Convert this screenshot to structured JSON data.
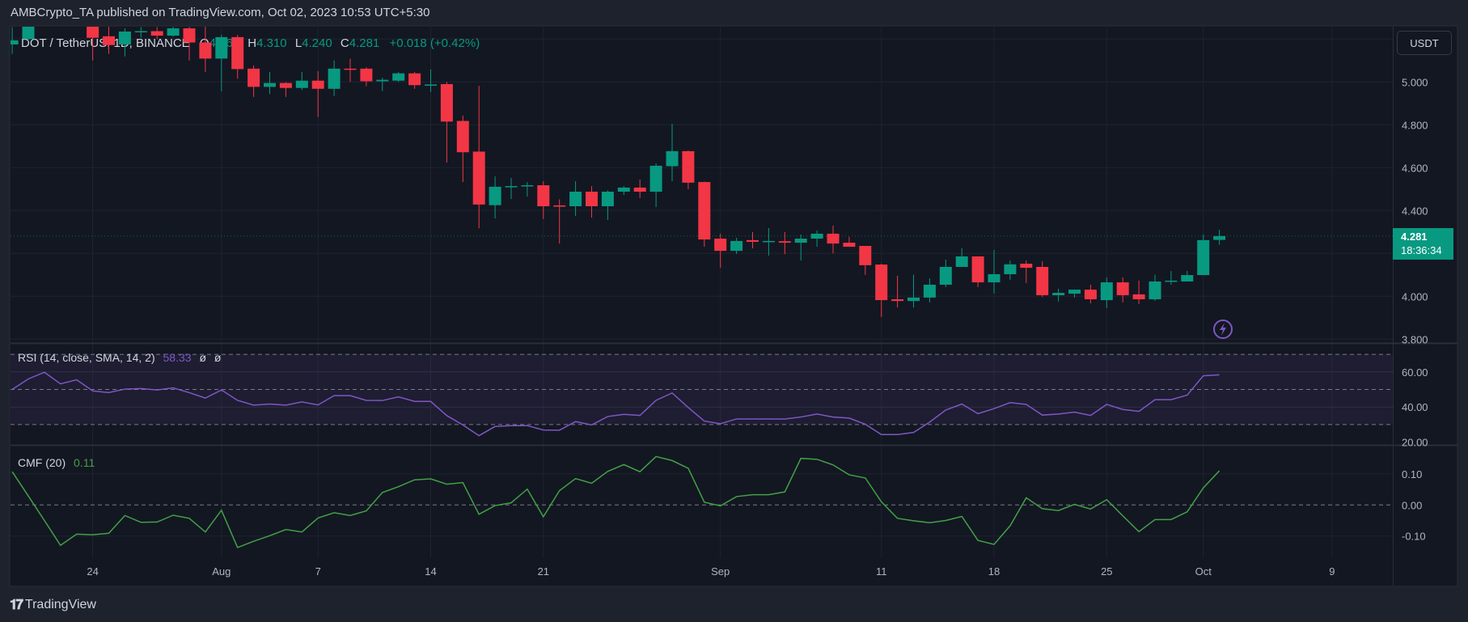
{
  "header": {
    "publish_line": "AMBCrypto_TA published on TradingView.com, Oct 02, 2023 10:53 UTC+5:30"
  },
  "legend": {
    "symbol": "DOT / TetherUS, 1D, BINANCE",
    "open_label": "O",
    "open": "4.263",
    "high_label": "H",
    "high": "4.310",
    "low_label": "L",
    "low": "4.240",
    "close_label": "C",
    "close": "4.281",
    "change": "+0.018 (+0.42%)"
  },
  "currency_button": "USDT",
  "last_price": {
    "price": "4.281",
    "countdown": "18:36:34"
  },
  "price_axis": {
    "labels": [
      "5.000",
      "4.800",
      "4.600",
      "4.400",
      "4.000",
      "3.800"
    ],
    "values": [
      5.0,
      4.8,
      4.6,
      4.4,
      4.0,
      3.8
    ]
  },
  "rsi": {
    "title": "RSI (14, close, SMA, 14, 2)",
    "value": "58.33",
    "extra1": "ø",
    "extra2": "ø",
    "axis_labels": [
      "60.00",
      "40.00",
      "20.00"
    ],
    "axis_values": [
      60,
      40,
      20
    ],
    "band": [
      30,
      70
    ],
    "mid": 50
  },
  "cmf": {
    "title": "CMF (20)",
    "value": "0.11",
    "axis_labels": [
      "0.10",
      "0.00",
      "-0.10"
    ],
    "axis_values": [
      0.1,
      0,
      -0.1
    ]
  },
  "time_axis": {
    "labels": [
      "24",
      "Aug",
      "7",
      "14",
      "21",
      "Sep",
      "11",
      "18",
      "25",
      "Oct",
      "9"
    ],
    "dates": [
      "2023-07-24",
      "2023-08-01",
      "2023-08-07",
      "2023-08-14",
      "2023-08-21",
      "2023-09-01",
      "2023-09-11",
      "2023-09-18",
      "2023-09-25",
      "2023-10-01",
      "2023-10-09"
    ]
  },
  "footer": {
    "brand": "TradingView",
    "logo_text": "17"
  },
  "colors": {
    "up": "#089981",
    "down": "#f23645",
    "rsi": "#7e57c2",
    "cmf": "#43a047",
    "background": "#131722"
  },
  "icons": {
    "alert": "lightning-bolt-icon"
  },
  "chart_data": {
    "type": "candlestick",
    "start_date": "2023-07-19",
    "interval": "1D",
    "ohlc": [
      [
        5.175,
        5.256,
        5.131,
        5.194
      ],
      [
        5.2,
        5.27,
        5.19,
        5.26
      ],
      null,
      null,
      null,
      [
        5.26,
        5.27,
        5.1,
        5.206
      ],
      [
        5.213,
        5.26,
        5.131,
        5.172
      ],
      [
        5.175,
        5.25,
        5.119,
        5.235
      ],
      [
        5.235,
        5.256,
        5.206,
        5.237
      ],
      [
        5.237,
        5.256,
        5.2,
        5.216
      ],
      [
        5.216,
        5.26,
        5.21,
        5.25
      ],
      [
        5.25,
        5.26,
        5.1,
        5.184
      ],
      [
        5.184,
        5.26,
        5.047,
        5.109
      ],
      [
        5.109,
        5.22,
        4.956,
        5.209
      ],
      [
        5.209,
        5.219,
        5.015,
        5.06
      ],
      [
        5.062,
        5.077,
        4.93,
        4.977
      ],
      [
        4.977,
        5.047,
        4.943,
        4.995
      ],
      [
        4.995,
        4.999,
        4.93,
        4.972
      ],
      [
        4.972,
        5.047,
        4.962,
        5.006
      ],
      [
        5.006,
        5.05,
        4.837,
        4.968
      ],
      [
        4.968,
        5.1,
        4.934,
        5.062
      ],
      [
        5.062,
        5.108,
        5.0,
        5.06
      ],
      [
        5.062,
        5.068,
        4.98,
        5.003
      ],
      [
        5.003,
        5.02,
        4.958,
        5.01
      ],
      [
        5.006,
        5.047,
        5.0,
        5.04
      ],
      [
        5.04,
        5.047,
        4.968,
        4.985
      ],
      [
        4.985,
        5.058,
        4.953,
        4.988
      ],
      [
        4.99,
        5.0,
        4.624,
        4.815
      ],
      [
        4.818,
        4.843,
        4.533,
        4.672
      ],
      [
        4.675,
        4.982,
        4.317,
        4.428
      ],
      [
        4.425,
        4.56,
        4.363,
        4.511
      ],
      [
        4.51,
        4.552,
        4.454,
        4.514
      ],
      [
        4.513,
        4.533,
        4.465,
        4.518
      ],
      [
        4.518,
        4.537,
        4.36,
        4.42
      ],
      [
        4.424,
        4.452,
        4.246,
        4.418
      ],
      [
        4.42,
        4.537,
        4.375,
        4.488
      ],
      [
        4.488,
        4.514,
        4.367,
        4.42
      ],
      [
        4.42,
        4.494,
        4.356,
        4.488
      ],
      [
        4.488,
        4.514,
        4.473,
        4.507
      ],
      [
        4.507,
        4.545,
        4.458,
        4.488
      ],
      [
        4.488,
        4.62,
        4.416,
        4.609
      ],
      [
        4.607,
        4.805,
        4.537,
        4.677
      ],
      [
        4.677,
        4.68,
        4.499,
        4.53
      ],
      [
        4.533,
        4.535,
        4.231,
        4.265
      ],
      [
        4.269,
        4.292,
        4.133,
        4.212
      ],
      [
        4.212,
        4.273,
        4.197,
        4.258
      ],
      [
        4.262,
        4.3,
        4.224,
        4.254
      ],
      [
        4.255,
        4.318,
        4.19,
        4.258
      ],
      [
        4.257,
        4.3,
        4.197,
        4.25
      ],
      [
        4.25,
        4.288,
        4.167,
        4.269
      ],
      [
        4.269,
        4.307,
        4.231,
        4.292
      ],
      [
        4.292,
        4.33,
        4.2,
        4.246
      ],
      [
        4.25,
        4.277,
        4.231,
        4.231
      ],
      [
        4.235,
        4.235,
        4.1,
        4.145
      ],
      [
        4.148,
        4.152,
        3.903,
        3.982
      ],
      [
        3.986,
        4.096,
        3.948,
        3.978
      ],
      [
        3.978,
        4.1,
        3.948,
        3.994
      ],
      [
        3.994,
        4.084,
        3.971,
        4.054
      ],
      [
        4.054,
        4.171,
        4.043,
        4.137
      ],
      [
        4.137,
        4.224,
        4.137,
        4.186
      ],
      [
        4.186,
        4.186,
        4.043,
        4.065
      ],
      [
        4.065,
        4.216,
        4.013,
        4.103
      ],
      [
        4.103,
        4.167,
        4.077,
        4.149
      ],
      [
        4.152,
        4.167,
        4.062,
        4.133
      ],
      [
        4.137,
        4.164,
        3.997,
        4.005
      ],
      [
        4.005,
        4.035,
        3.975,
        4.016
      ],
      [
        4.012,
        4.031,
        3.994,
        4.031
      ],
      [
        4.031,
        4.054,
        3.967,
        3.986
      ],
      [
        3.982,
        4.088,
        3.945,
        4.065
      ],
      [
        4.065,
        4.088,
        3.971,
        4.005
      ],
      [
        4.009,
        4.073,
        3.963,
        3.986
      ],
      [
        3.986,
        4.1,
        3.979,
        4.069
      ],
      [
        4.071,
        4.118,
        4.054,
        4.073
      ],
      [
        4.069,
        4.118,
        4.069,
        4.099
      ],
      [
        4.099,
        4.288,
        4.099,
        4.262
      ],
      [
        4.263,
        4.31,
        4.24,
        4.281
      ]
    ],
    "rsi": [
      50,
      56,
      59.8,
      53.2,
      55.5,
      49.2,
      48.2,
      50.2,
      50.5,
      49.7,
      50.9,
      48.2,
      45.1,
      49.7,
      43.8,
      41.1,
      41.7,
      41.1,
      42.9,
      41.2,
      46.5,
      46.5,
      43.8,
      43.7,
      45.8,
      43.2,
      43.2,
      35.1,
      29.8,
      23.7,
      28.9,
      29.4,
      29.4,
      26.9,
      26.8,
      31.7,
      29.8,
      34.6,
      35.8,
      35.2,
      43.8,
      48.0,
      39.7,
      32.0,
      30.5,
      33.2,
      33.2,
      33.2,
      33.2,
      34.3,
      36.0,
      34.3,
      33.7,
      30.2,
      24.3,
      24.3,
      25.5,
      31.4,
      38.3,
      41.7,
      36.2,
      39.1,
      42.5,
      41.5,
      35.4,
      36.0,
      37.1,
      35.2,
      41.5,
      38.6,
      37.5,
      44.2,
      44.2,
      46.8,
      57.8,
      58.33
    ],
    "cmf": [
      0.107,
      0.029,
      -0.05,
      -0.13,
      -0.094,
      -0.096,
      -0.091,
      -0.034,
      -0.056,
      -0.055,
      -0.033,
      -0.043,
      -0.087,
      -0.017,
      -0.137,
      -0.117,
      -0.099,
      -0.079,
      -0.087,
      -0.042,
      -0.025,
      -0.034,
      -0.019,
      0.04,
      0.059,
      0.081,
      0.084,
      0.067,
      0.072,
      -0.03,
      -0.002,
      0.007,
      0.051,
      -0.038,
      0.046,
      0.085,
      0.07,
      0.108,
      0.13,
      0.107,
      0.156,
      0.143,
      0.118,
      0.009,
      -0.003,
      0.027,
      0.033,
      0.033,
      0.042,
      0.15,
      0.147,
      0.129,
      0.097,
      0.087,
      0.01,
      -0.043,
      -0.051,
      -0.057,
      -0.05,
      -0.037,
      -0.114,
      -0.127,
      -0.067,
      0.023,
      -0.012,
      -0.018,
      0.002,
      -0.013,
      0.017,
      -0.035,
      -0.086,
      -0.047,
      -0.047,
      -0.022,
      0.055,
      0.11
    ]
  }
}
